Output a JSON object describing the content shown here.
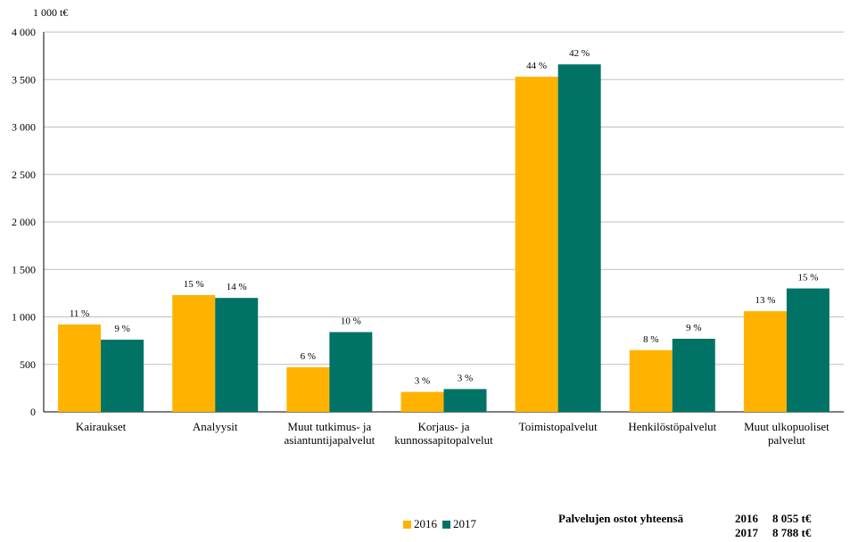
{
  "chart_data": {
    "type": "bar",
    "unit_label": "1 000 t€",
    "categories": [
      [
        "Kairaukset"
      ],
      [
        "Analyysit"
      ],
      [
        "Muut tutkimus- ja",
        "asiantuntijapalvelut"
      ],
      [
        "Korjaus- ja",
        "kunnossapitopalvelut"
      ],
      [
        "Toimistopalvelut"
      ],
      [
        "Henkilöstöpalvelut"
      ],
      [
        "Muut ulkopuoliset",
        "palvelut"
      ]
    ],
    "series": [
      {
        "name": "2016",
        "color": "#FFB300",
        "values": [
          920,
          1230,
          470,
          210,
          3530,
          650,
          1060
        ],
        "labels": [
          "11 %",
          "15 %",
          "6 %",
          "3 %",
          "44 %",
          "8 %",
          "13 %"
        ]
      },
      {
        "name": "2017",
        "color": "#007366",
        "values": [
          760,
          1200,
          840,
          240,
          3660,
          770,
          1300
        ],
        "labels": [
          "9 %",
          "14 %",
          "10 %",
          "3 %",
          "42 %",
          "9 %",
          "15 %"
        ]
      }
    ],
    "ylim": [
      0,
      4000
    ],
    "yticks": [
      0,
      500,
      1000,
      1500,
      2000,
      2500,
      3000,
      3500,
      4000
    ],
    "ytick_labels": [
      "0",
      "500",
      "1 000",
      "1 500",
      "2 000",
      "2 500",
      "3 000",
      "3 500",
      "4 000"
    ],
    "grid": true,
    "legend": "bottom"
  },
  "totals": {
    "label": "Palvelujen ostot yhteensä",
    "rows": [
      {
        "year": "2016",
        "value": "8 055 t€"
      },
      {
        "year": "2017",
        "value": "8 788 t€"
      }
    ]
  }
}
